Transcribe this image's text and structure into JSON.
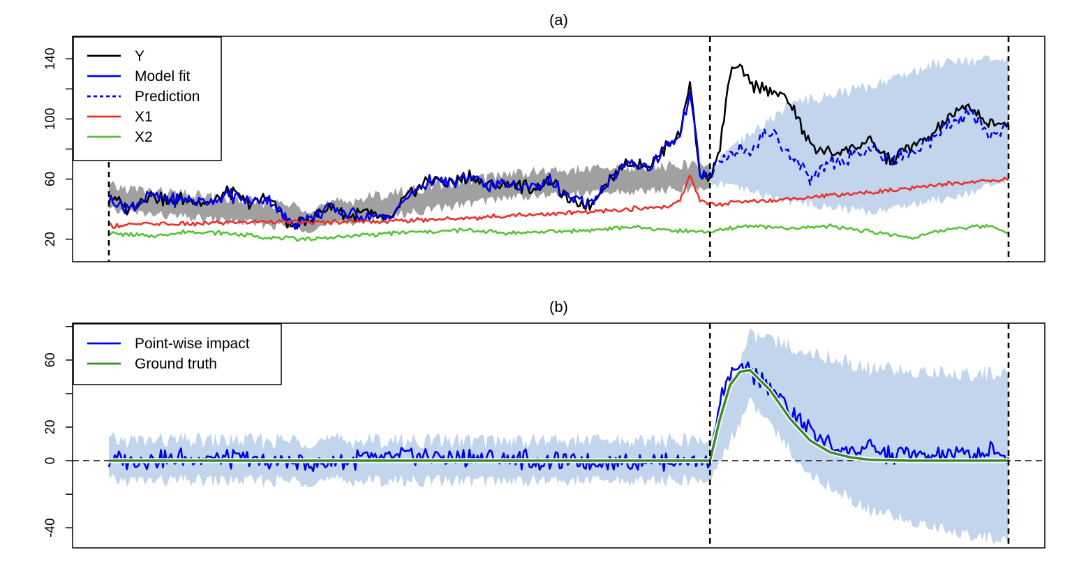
{
  "chart_data": [
    {
      "type": "line",
      "title": "(a)",
      "xlabel": "",
      "ylabel": "",
      "x_range": [
        0,
        449
      ],
      "intervention_start": 300,
      "post_end": 449,
      "ylim": [
        5,
        155
      ],
      "yticks": [
        20,
        60,
        100,
        140
      ],
      "ytick_labels": [
        "20",
        "60",
        "100",
        "140"
      ],
      "legend_position": "top-left",
      "legend": [
        {
          "label": "Y",
          "color": "#000000",
          "style": "solid"
        },
        {
          "label": "Model fit",
          "color": "#0000ee",
          "style": "solid"
        },
        {
          "label": "Prediction",
          "color": "#0000ee",
          "style": "dashed"
        },
        {
          "label": "X1",
          "color": "#e8322b",
          "style": "solid"
        },
        {
          "label": "X2",
          "color": "#55c236",
          "style": "solid"
        }
      ],
      "series": [
        {
          "name": "Y",
          "x": [
            0,
            10,
            20,
            30,
            40,
            50,
            60,
            70,
            80,
            90,
            100,
            110,
            120,
            130,
            140,
            150,
            160,
            170,
            180,
            190,
            200,
            210,
            220,
            230,
            240,
            250,
            260,
            270,
            280,
            285,
            290,
            295,
            300,
            305,
            310,
            315,
            320,
            330,
            340,
            350,
            360,
            370,
            380,
            390,
            400,
            410,
            420,
            430,
            440,
            449
          ],
          "values": [
            48,
            40,
            50,
            45,
            47,
            44,
            52,
            43,
            49,
            28,
            33,
            42,
            35,
            37,
            33,
            50,
            60,
            58,
            62,
            55,
            57,
            54,
            60,
            45,
            43,
            60,
            72,
            68,
            85,
            90,
            125,
            62,
            62,
            80,
            130,
            135,
            122,
            120,
            112,
            82,
            78,
            80,
            85,
            72,
            82,
            88,
            102,
            108,
            95,
            98
          ]
        },
        {
          "name": "Model fit",
          "x": [
            0,
            10,
            20,
            30,
            40,
            50,
            60,
            70,
            80,
            90,
            100,
            110,
            120,
            130,
            140,
            150,
            160,
            170,
            180,
            190,
            200,
            210,
            220,
            230,
            240,
            250,
            260,
            270,
            280,
            285,
            290,
            295,
            300
          ],
          "values": [
            46,
            41,
            49,
            46,
            46,
            45,
            50,
            44,
            48,
            30,
            34,
            41,
            36,
            36,
            34,
            49,
            59,
            57,
            61,
            56,
            56,
            55,
            59,
            46,
            44,
            59,
            71,
            68,
            84,
            88,
            120,
            64,
            61
          ]
        },
        {
          "name": "Prediction",
          "x": [
            300,
            305,
            310,
            315,
            320,
            330,
            340,
            350,
            360,
            370,
            380,
            390,
            400,
            410,
            420,
            430,
            440,
            449
          ],
          "values": [
            61,
            72,
            76,
            82,
            80,
            92,
            78,
            60,
            72,
            75,
            80,
            72,
            78,
            84,
            97,
            104,
            88,
            98
          ]
        },
        {
          "name": "X1",
          "x": [
            0,
            20,
            40,
            60,
            80,
            100,
            120,
            140,
            160,
            180,
            200,
            220,
            240,
            260,
            280,
            285,
            290,
            295,
            300,
            320,
            340,
            360,
            380,
            400,
            420,
            440,
            449
          ],
          "values": [
            29,
            30,
            30,
            31,
            32,
            31,
            32,
            32,
            33,
            34,
            36,
            37,
            38,
            40,
            42,
            45,
            63,
            46,
            43,
            45,
            47,
            49,
            51,
            54,
            57,
            59,
            60
          ]
        },
        {
          "name": "X2",
          "x": [
            0,
            20,
            40,
            60,
            80,
            100,
            120,
            140,
            160,
            180,
            200,
            220,
            240,
            260,
            280,
            300,
            320,
            340,
            360,
            380,
            400,
            420,
            440,
            449
          ],
          "values": [
            24,
            22,
            25,
            24,
            21,
            20,
            22,
            24,
            25,
            26,
            24,
            25,
            26,
            28,
            26,
            25,
            29,
            27,
            29,
            25,
            21,
            27,
            29,
            24
          ]
        }
      ],
      "bands": [
        {
          "name": "Model fit interval",
          "color": "#a0a0a0",
          "x": [
            0,
            100,
            200,
            300
          ],
          "lower": [
            39,
            27,
            48,
            54
          ],
          "upper": [
            55,
            41,
            64,
            70
          ]
        },
        {
          "name": "Prediction interval",
          "color": "#c2d5ed",
          "x": [
            300,
            340,
            380,
            420,
            449
          ],
          "lower": [
            58,
            45,
            38,
            48,
            58
          ],
          "upper": [
            68,
            110,
            122,
            140,
            138
          ]
        }
      ]
    },
    {
      "type": "line",
      "title": "(b)",
      "xlabel": "",
      "ylabel": "",
      "x_range": [
        0,
        449
      ],
      "intervention_start": 300,
      "post_end": 449,
      "ylim": [
        -52,
        82
      ],
      "yticks": [
        -40,
        0,
        20,
        60
      ],
      "ytick_labels": [
        "-40",
        "0",
        "20",
        "60"
      ],
      "legend_position": "top-left",
      "legend": [
        {
          "label": "Point-wise impact",
          "color": "#0000ee",
          "style": "solid"
        },
        {
          "label": "Ground truth",
          "color": "#3a8a2a",
          "style": "solid"
        }
      ],
      "series": [
        {
          "name": "Point-wise impact",
          "x": [
            0,
            50,
            100,
            150,
            200,
            250,
            300,
            305,
            310,
            315,
            320,
            330,
            340,
            350,
            360,
            370,
            380,
            390,
            400,
            410,
            420,
            430,
            440,
            449
          ],
          "values": [
            0,
            2,
            -2,
            3,
            1,
            -1,
            0,
            35,
            50,
            55,
            52,
            45,
            30,
            18,
            10,
            5,
            8,
            3,
            5,
            2,
            4,
            3,
            5,
            2
          ]
        },
        {
          "name": "Ground truth",
          "x": [
            0,
            300,
            305,
            310,
            315,
            320,
            330,
            340,
            350,
            360,
            370,
            380,
            400,
            449
          ],
          "values": [
            0,
            0,
            25,
            45,
            53,
            54,
            42,
            25,
            12,
            5,
            2,
            0.5,
            0,
            0
          ]
        }
      ],
      "bands": [
        {
          "name": "Impact interval",
          "color": "#c2d5ed",
          "x": [
            0,
            300,
            320,
            350,
            380,
            420,
            449
          ],
          "lower": [
            -12,
            -12,
            35,
            -8,
            -30,
            -42,
            -48
          ],
          "upper": [
            12,
            12,
            75,
            65,
            55,
            52,
            52
          ]
        }
      ]
    }
  ]
}
